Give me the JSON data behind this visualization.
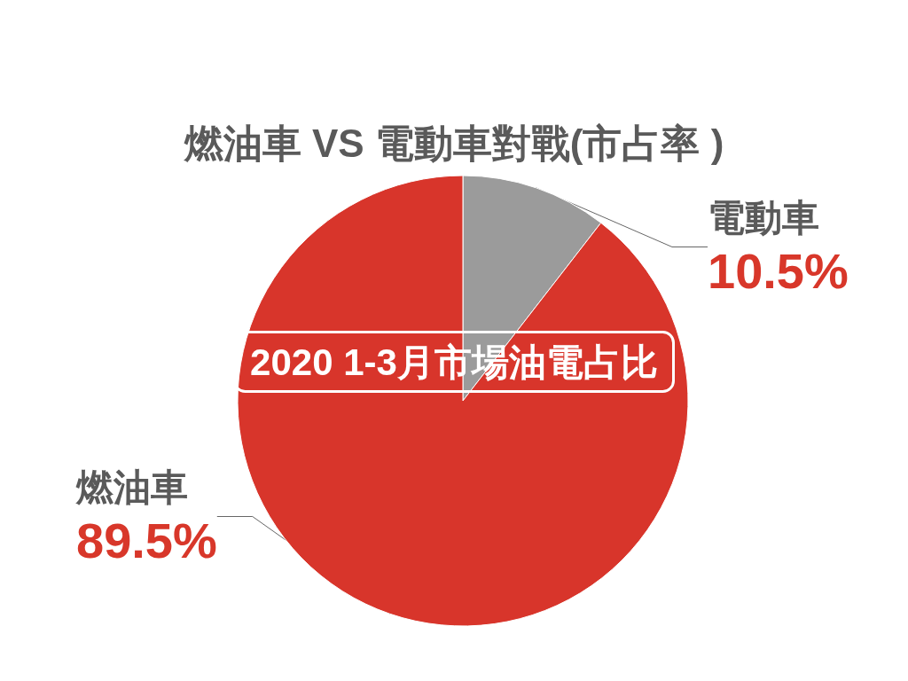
{
  "chart_data": {
    "type": "pie",
    "title": "燃油車 VS 電動車對戰(市占率 )",
    "categories": [
      "電動車",
      "燃油車"
    ],
    "values": [
      10.5,
      89.5
    ],
    "colors": [
      "#9b9b9b",
      "#d8352b"
    ],
    "value_labels": [
      "10.5%",
      "89.5%"
    ],
    "annotations": [
      "2020 1-3月市場油電占比"
    ]
  }
}
